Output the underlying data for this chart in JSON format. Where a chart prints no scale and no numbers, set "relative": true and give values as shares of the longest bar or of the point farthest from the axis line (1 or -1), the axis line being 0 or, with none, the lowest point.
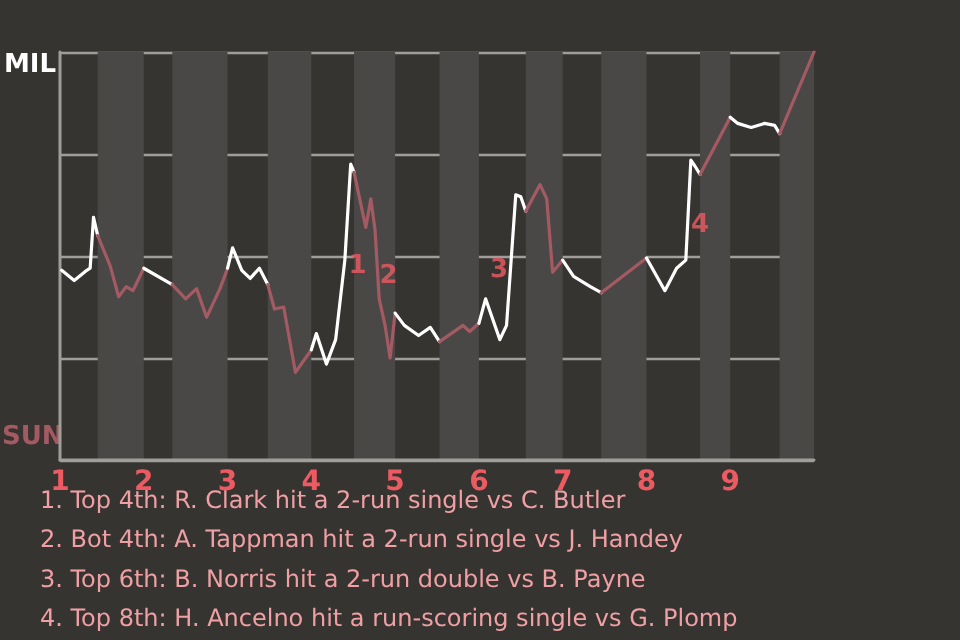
{
  "chart_data": {
    "type": "line",
    "relative": true,
    "grid": "y",
    "xlim": [
      1,
      10
    ],
    "xticks": [
      1,
      2,
      3,
      4,
      5,
      6,
      7,
      8,
      9
    ],
    "bands": [
      {
        "axis": "x",
        "from": 1.45,
        "to": 2,
        "color": "#4a4846"
      },
      {
        "axis": "x",
        "from": 2.34,
        "to": 3,
        "color": "#4a4846"
      },
      {
        "axis": "x",
        "from": 3.48,
        "to": 4,
        "color": "#4a4846"
      },
      {
        "axis": "x",
        "from": 4.51,
        "to": 5,
        "color": "#4a4846"
      },
      {
        "axis": "x",
        "from": 5.53,
        "to": 6,
        "color": "#4a4846"
      },
      {
        "axis": "x",
        "from": 6.56,
        "to": 7,
        "color": "#4a4846"
      },
      {
        "axis": "x",
        "from": 7.46,
        "to": 8,
        "color": "#4a4846"
      },
      {
        "axis": "x",
        "from": 8.64,
        "to": 9,
        "color": "#4a4846"
      },
      {
        "axis": "x",
        "from": 9.59,
        "to": 10,
        "color": "#4a4846"
      }
    ],
    "series": [
      {
        "color": "#ffffff",
        "x": [
          1.02,
          1.17,
          1.32,
          1.36,
          1.4,
          1.45
        ],
        "values": [
          -0.07,
          -0.12,
          -0.07,
          -0.06,
          0.19,
          0.1
        ]
      },
      {
        "color": "#a45a62",
        "x": [
          1.45,
          1.6,
          1.7,
          1.79,
          1.87,
          2
        ],
        "values": [
          0.1,
          -0.05,
          -0.2,
          -0.15,
          -0.17,
          -0.06
        ]
      },
      {
        "color": "#ffffff",
        "x": [
          2,
          2.34
        ],
        "values": [
          -0.06,
          -0.14
        ]
      },
      {
        "color": "#a45a62",
        "x": [
          2.34,
          2.5,
          2.63,
          2.75,
          2.91,
          3
        ],
        "values": [
          -0.14,
          -0.21,
          -0.16,
          -0.3,
          -0.16,
          -0.06
        ]
      },
      {
        "color": "#ffffff",
        "x": [
          3,
          3.06,
          3.17,
          3.27,
          3.38,
          3.48
        ],
        "values": [
          -0.06,
          0.04,
          -0.07,
          -0.11,
          -0.06,
          -0.14
        ]
      },
      {
        "color": "#a45a62",
        "x": [
          3.48,
          3.56,
          3.67,
          3.81,
          4
        ],
        "values": [
          -0.14,
          -0.26,
          -0.25,
          -0.57,
          -0.46
        ]
      },
      {
        "color": "#ffffff",
        "x": [
          4,
          4.06,
          4.18,
          4.29,
          4.4,
          4.47,
          4.51
        ],
        "values": [
          -0.46,
          -0.38,
          -0.53,
          -0.41,
          -0.02,
          0.45,
          0.41
        ]
      },
      {
        "color": "#a45a62",
        "x": [
          4.51,
          4.65,
          4.71,
          4.76,
          4.81,
          4.88,
          4.94,
          5
        ],
        "values": [
          0.41,
          0.14,
          0.28,
          0.13,
          -0.21,
          -0.34,
          -0.5,
          -0.28
        ]
      },
      {
        "color": "#ffffff",
        "x": [
          5,
          5.11,
          5.28,
          5.42,
          5.53
        ],
        "values": [
          -0.28,
          -0.34,
          -0.39,
          -0.35,
          -0.42
        ]
      },
      {
        "color": "#a45a62",
        "x": [
          5.53,
          5.81,
          5.89,
          6
        ],
        "values": [
          -0.42,
          -0.34,
          -0.37,
          -0.33
        ]
      },
      {
        "color": "#ffffff",
        "x": [
          6,
          6.08,
          6.25,
          6.33,
          6.44,
          6.5,
          6.56
        ],
        "values": [
          -0.33,
          -0.21,
          -0.41,
          -0.34,
          0.3,
          0.29,
          0.22
        ]
      },
      {
        "color": "#a45a62",
        "x": [
          6.56,
          6.73,
          6.81,
          6.88,
          7
        ],
        "values": [
          0.22,
          0.35,
          0.28,
          -0.08,
          -0.02
        ]
      },
      {
        "color": "#ffffff",
        "x": [
          7,
          7.13,
          7.33,
          7.46
        ],
        "values": [
          -0.02,
          -0.1,
          -0.15,
          -0.18
        ]
      },
      {
        "color": "#a45a62",
        "x": [
          7.46,
          8
        ],
        "values": [
          -0.18,
          -0.01
        ]
      },
      {
        "color": "#ffffff",
        "x": [
          8,
          8.22,
          8.36,
          8.47,
          8.53,
          8.58,
          8.64
        ],
        "values": [
          -0.01,
          -0.17,
          -0.06,
          -0.02,
          0.47,
          0.44,
          0.4
        ]
      },
      {
        "color": "#a45a62",
        "x": [
          8.64,
          9
        ],
        "values": [
          0.4,
          0.68
        ]
      },
      {
        "color": "#ffffff",
        "x": [
          9,
          9.09,
          9.25,
          9.41,
          9.53,
          9.59
        ],
        "values": [
          0.68,
          0.65,
          0.63,
          0.65,
          0.64,
          0.6
        ]
      },
      {
        "color": "#a45a62",
        "x": [
          9.59,
          10
        ],
        "values": [
          0.6,
          1
        ]
      }
    ],
    "annotations": [
      "MIL",
      "SUN",
      {
        "text": "1",
        "x": 4.55,
        "y": -0.05
      },
      {
        "text": "2",
        "x": 4.92,
        "y": -0.1
      },
      {
        "text": "3",
        "x": 6.24,
        "y": -0.07
      },
      {
        "text": "4",
        "x": 8.64,
        "y": 0.15
      },
      "1. Top 4th: R. Clark hit a 2-run single vs C. Butler",
      "2. Bot 4th: A. Tappman hit a 2-run single vs J. Handey",
      "3. Top 6th: B. Norris hit a 2-run double vs B. Payne",
      "4. Top 8th: H. Ancelno hit a run-scoring single vs G. Plomp"
    ]
  }
}
